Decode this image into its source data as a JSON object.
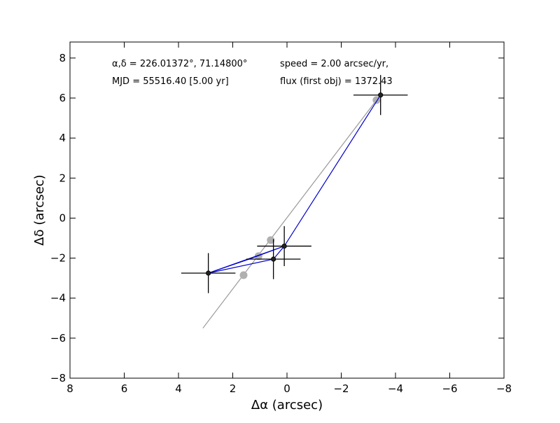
{
  "annotations": {
    "radec": "α,δ = 226.01372°, 71.14800°",
    "mjd": "MJD = 55516.40 [5.00 yr]",
    "speed": "speed = 2.00 arcsec/yr,",
    "flux": "flux (first obj) = 1372.43"
  },
  "chart_data": {
    "type": "scatter",
    "xlabel": "Δα (arcsec)",
    "ylabel": "Δδ (arcsec)",
    "xlim": [
      8,
      -8
    ],
    "ylim": [
      -8,
      8.8
    ],
    "x_ticks": [
      8,
      6,
      4,
      2,
      0,
      -2,
      -4,
      -6,
      -8
    ],
    "x_tick_labels": [
      "8",
      "6",
      "4",
      "2",
      "0",
      "−2",
      "−4",
      "−6",
      "−8"
    ],
    "y_ticks": [
      8,
      6,
      4,
      2,
      0,
      -2,
      -4,
      -6,
      -8
    ],
    "y_tick_labels": [
      "8",
      "6",
      "4",
      "2",
      "0",
      "−2",
      "−4",
      "−6",
      "−8"
    ],
    "grid": false,
    "colors": {
      "observed": "#0000cc",
      "model": "#999999",
      "model_points": "#b0b0b0",
      "errorbars": "#000000"
    },
    "series": [
      {
        "points": [
          {
            "x": 2.9,
            "y": -2.75,
            "xerr": 1.0,
            "yerr": 1.0
          },
          {
            "x": 0.5,
            "y": -2.05,
            "xerr": 1.0,
            "yerr": 1.0
          },
          {
            "x": 0.1,
            "y": -1.4,
            "xerr": 1.0,
            "yerr": 1.0
          },
          {
            "x": -3.45,
            "y": 6.15,
            "xerr": 1.0,
            "yerr": 1.0
          }
        ]
      },
      {
        "line": [
          {
            "x": 3.1,
            "y": -5.5
          },
          {
            "x": -3.3,
            "y": 5.9
          }
        ],
        "points": [
          {
            "x": 1.6,
            "y": -2.85
          },
          {
            "x": 1.05,
            "y": -1.9
          },
          {
            "x": 0.6,
            "y": -1.1
          },
          {
            "x": -3.3,
            "y": 5.9
          }
        ]
      }
    ],
    "observed_path": [
      {
        "x": -3.45,
        "y": 6.15
      },
      {
        "x": 0.1,
        "y": -1.4
      },
      {
        "x": 2.9,
        "y": -2.75
      },
      {
        "x": 1.4,
        "y": -2.05
      },
      {
        "x": 0.1,
        "y": -1.4
      },
      {
        "x": 0.5,
        "y": -2.05
      },
      {
        "x": 2.9,
        "y": -2.75
      }
    ]
  }
}
